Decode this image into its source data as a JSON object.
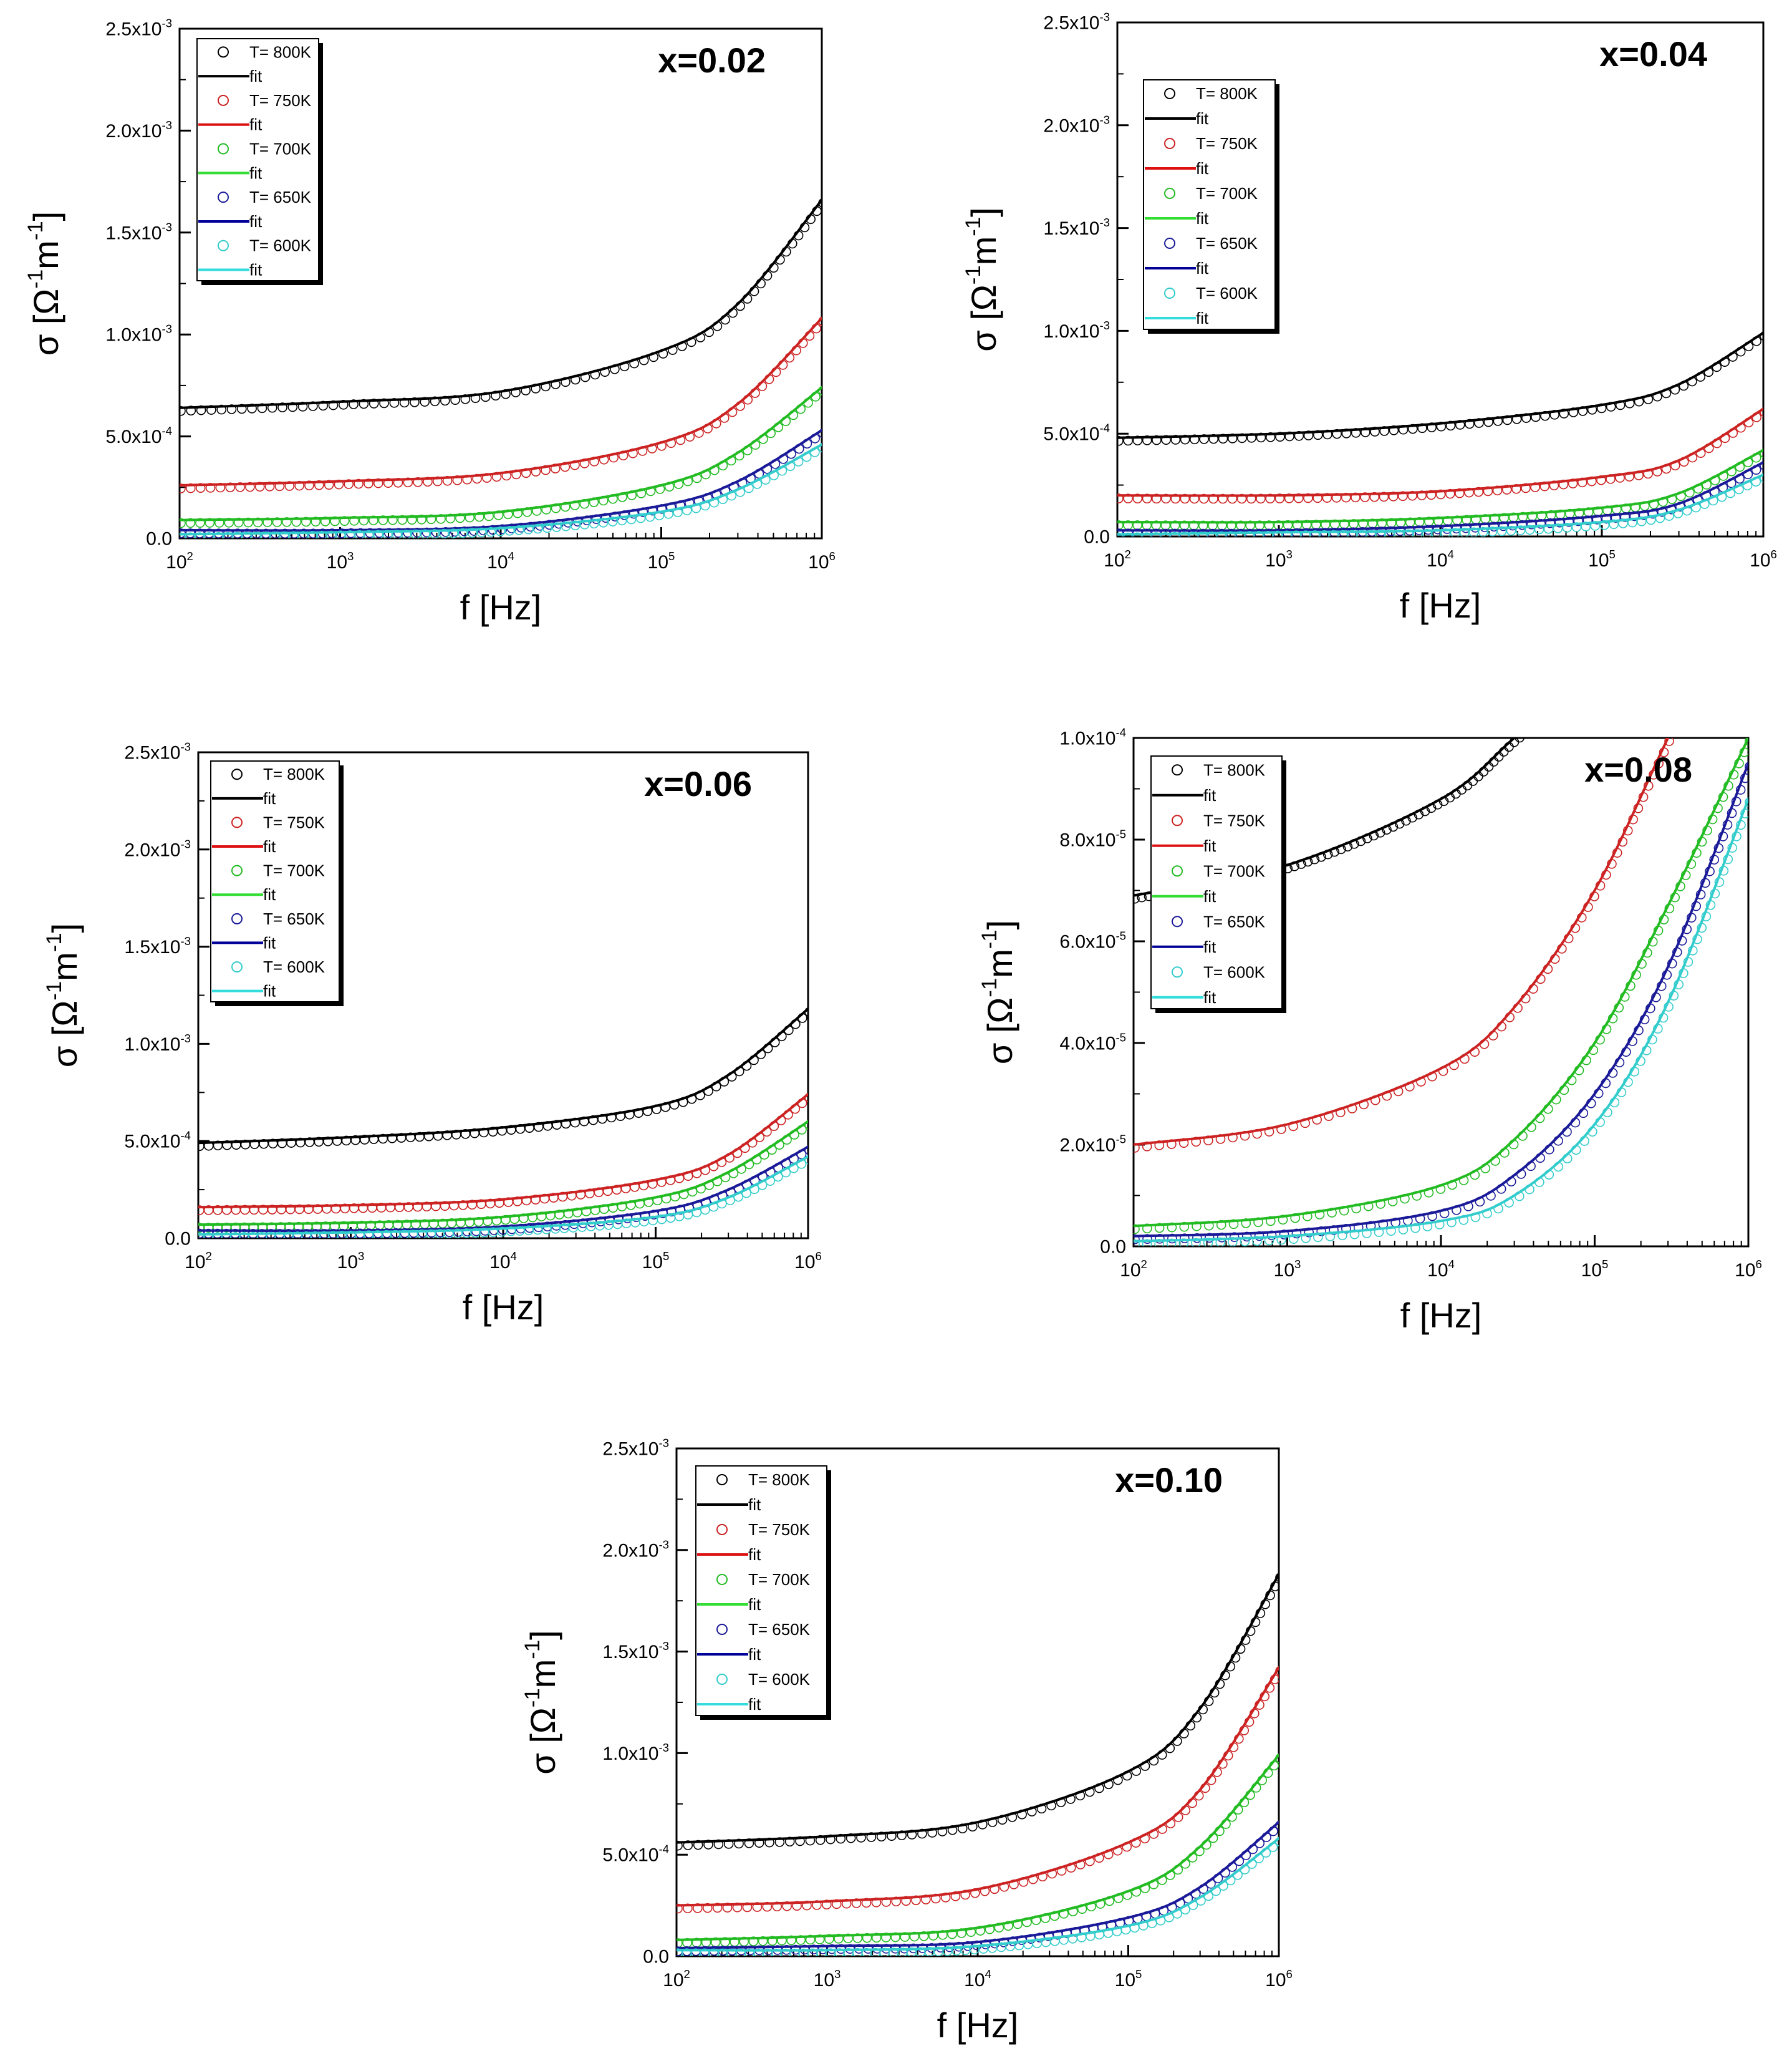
{
  "chart_data": [
    {
      "type": "scatter",
      "title": "x=0.02",
      "xlabel": "f  [Hz]",
      "ylabel": "σ [Ω-1m-1]",
      "xscale": "log",
      "xlim": [
        100,
        1000000
      ],
      "ylim": [
        0,
        0.0025
      ],
      "xticks": [
        "102",
        "103",
        "104",
        "105",
        "106"
      ],
      "yticks": [
        "0.0",
        "5.0x10-4",
        "1.0x10-3",
        "1.5x10-3",
        "2.0x10-3",
        "2.5x10-3"
      ],
      "legend_position": "top-left",
      "legend": [
        {
          "label": "T= 800K",
          "marker": "circle",
          "color": "#000000"
        },
        {
          "label": "fit",
          "marker": "line",
          "color": "#000000"
        },
        {
          "label": "T= 750K",
          "marker": "circle",
          "color": "#cc2222"
        },
        {
          "label": "fit",
          "marker": "line",
          "color": "#dd1111"
        },
        {
          "label": "T= 700K",
          "marker": "circle",
          "color": "#22bb22"
        },
        {
          "label": "fit",
          "marker": "line",
          "color": "#33dd33"
        },
        {
          "label": "T= 650K",
          "marker": "circle",
          "color": "#1a1a99"
        },
        {
          "label": "fit",
          "marker": "line",
          "color": "#000099"
        },
        {
          "label": "T= 600K",
          "marker": "circle",
          "color": "#33cccc"
        },
        {
          "label": "fit",
          "marker": "line",
          "color": "#33dddd"
        }
      ],
      "x": [
        100,
        1000,
        10000,
        100000,
        300000,
        1000000
      ],
      "series": [
        {
          "name": "T= 800K",
          "color": "#000000",
          "values": [
            0.00064,
            0.00067,
            0.00072,
            0.00092,
            0.00115,
            0.00166
          ]
        },
        {
          "name": "T= 750K",
          "color": "#cc2222",
          "values": [
            0.00026,
            0.00028,
            0.00032,
            0.00047,
            0.00066,
            0.00108
          ]
        },
        {
          "name": "T= 700K",
          "color": "#22bb22",
          "values": [
            9e-05,
            0.0001,
            0.00013,
            0.00026,
            0.00042,
            0.00074
          ]
        },
        {
          "name": "T= 650K",
          "color": "#1a1a99",
          "values": [
            4e-05,
            4e-05,
            6e-05,
            0.00016,
            0.00028,
            0.00053
          ]
        },
        {
          "name": "T= 600K",
          "color": "#33cccc",
          "values": [
            2e-05,
            3e-05,
            5e-05,
            0.00013,
            0.00024,
            0.00046
          ]
        }
      ]
    },
    {
      "type": "scatter",
      "title": "x=0.04",
      "xlabel": "f [Hz]",
      "ylabel": "σ [Ω-1m-1]",
      "xscale": "log",
      "xlim": [
        100,
        1000000
      ],
      "ylim": [
        0,
        0.0025
      ],
      "xticks": [
        "102",
        "103",
        "104",
        "105",
        "106"
      ],
      "yticks": [
        "0.0",
        "5.0x10-4",
        "1.0x10-3",
        "1.5x10-3",
        "2.0x10-3",
        "2.5x10-3"
      ],
      "legend_position": "top-left",
      "legend": [
        {
          "label": "T= 800K",
          "marker": "circle",
          "color": "#000000"
        },
        {
          "label": "fit",
          "marker": "line",
          "color": "#000000"
        },
        {
          "label": "T= 750K",
          "marker": "circle",
          "color": "#cc2222"
        },
        {
          "label": "fit",
          "marker": "line",
          "color": "#dd1111"
        },
        {
          "label": "T= 700K",
          "marker": "circle",
          "color": "#22bb22"
        },
        {
          "label": "fit",
          "marker": "line",
          "color": "#33dd33"
        },
        {
          "label": "T= 650K",
          "marker": "circle",
          "color": "#1a1a99"
        },
        {
          "label": "fit",
          "marker": "line",
          "color": "#000099"
        },
        {
          "label": "T= 600K",
          "marker": "circle",
          "color": "#33cccc"
        },
        {
          "label": "fit",
          "marker": "line",
          "color": "#33dddd"
        }
      ],
      "x": [
        100,
        1000,
        10000,
        100000,
        300000,
        1000000
      ],
      "series": [
        {
          "name": "T= 800K",
          "color": "#000000",
          "values": [
            0.00048,
            0.0005,
            0.00055,
            0.00064,
            0.00074,
            0.00099
          ]
        },
        {
          "name": "T= 750K",
          "color": "#cc2222",
          "values": [
            0.0002,
            0.0002,
            0.00022,
            0.00029,
            0.00037,
            0.00062
          ]
        },
        {
          "name": "T= 700K",
          "color": "#22bb22",
          "values": [
            7e-05,
            7e-05,
            9e-05,
            0.00014,
            0.00021,
            0.00042
          ]
        },
        {
          "name": "T= 650K",
          "color": "#1a1a99",
          "values": [
            3e-05,
            3e-05,
            5e-05,
            0.0001,
            0.00016,
            0.00036
          ]
        },
        {
          "name": "T= 600K",
          "color": "#33cccc",
          "values": [
            1e-05,
            2e-05,
            3e-05,
            7e-05,
            0.00013,
            0.0003
          ]
        }
      ]
    },
    {
      "type": "scatter",
      "title": "x=0.06",
      "xlabel": "f [Hz]",
      "ylabel": "σ [Ω-1m-1]",
      "xscale": "log",
      "xlim": [
        100,
        1000000
      ],
      "ylim": [
        0,
        0.0025
      ],
      "xticks": [
        "102",
        "103",
        "104",
        "105",
        "106"
      ],
      "yticks": [
        "0.0",
        "5.0x10-4",
        "1.0x10-3",
        "1.5x10-3",
        "2.0x10-3",
        "2.5x10-3"
      ],
      "legend_position": "top-left",
      "legend": [
        {
          "label": "T= 800K",
          "marker": "circle",
          "color": "#000000"
        },
        {
          "label": "fit",
          "marker": "line",
          "color": "#000000"
        },
        {
          "label": "T= 750K",
          "marker": "circle",
          "color": "#cc2222"
        },
        {
          "label": "fit",
          "marker": "line",
          "color": "#dd1111"
        },
        {
          "label": "T= 700K",
          "marker": "circle",
          "color": "#22bb22"
        },
        {
          "label": "fit",
          "marker": "line",
          "color": "#33dd33"
        },
        {
          "label": "T= 650K",
          "marker": "circle",
          "color": "#1a1a99"
        },
        {
          "label": "fit",
          "marker": "line",
          "color": "#000099"
        },
        {
          "label": "T= 600K",
          "marker": "circle",
          "color": "#33cccc"
        },
        {
          "label": "fit",
          "marker": "line",
          "color": "#33dddd"
        }
      ],
      "x": [
        100,
        1000,
        10000,
        100000,
        300000,
        1000000
      ],
      "series": [
        {
          "name": "T= 800K",
          "color": "#000000",
          "values": [
            0.00049,
            0.00052,
            0.00057,
            0.00068,
            0.00084,
            0.00118
          ]
        },
        {
          "name": "T= 750K",
          "color": "#cc2222",
          "values": [
            0.00016,
            0.00017,
            0.0002,
            0.0003,
            0.00043,
            0.00074
          ]
        },
        {
          "name": "T= 700K",
          "color": "#22bb22",
          "values": [
            7e-05,
            8e-05,
            0.00011,
            0.00021,
            0.00034,
            0.0006
          ]
        },
        {
          "name": "T= 650K",
          "color": "#1a1a99",
          "values": [
            4e-05,
            4e-05,
            6e-05,
            0.00014,
            0.00025,
            0.00047
          ]
        },
        {
          "name": "T= 600K",
          "color": "#33cccc",
          "values": [
            2e-05,
            3e-05,
            5e-05,
            0.00011,
            0.00021,
            0.00042
          ]
        }
      ]
    },
    {
      "type": "scatter",
      "title": "x=0.08",
      "xlabel": "f [Hz]",
      "ylabel": "σ [Ω-1m-1]",
      "xscale": "log",
      "xlim": [
        100,
        1000000
      ],
      "ylim": [
        0,
        0.0001
      ],
      "xticks": [
        "102",
        "103",
        "104",
        "105",
        "106"
      ],
      "yticks": [
        "0.0",
        "2.0x10-5",
        "4.0x10-5",
        "6.0x10-5",
        "8.0x10-5",
        "1.0x10-4"
      ],
      "legend_position": "top-left",
      "legend": [
        {
          "label": "T= 800K",
          "marker": "circle",
          "color": "#000000"
        },
        {
          "label": "fit",
          "marker": "line",
          "color": "#000000"
        },
        {
          "label": "T= 750K",
          "marker": "circle",
          "color": "#cc2222"
        },
        {
          "label": "fit",
          "marker": "line",
          "color": "#dd1111"
        },
        {
          "label": "T= 700K",
          "marker": "circle",
          "color": "#22bb22"
        },
        {
          "label": "fit",
          "marker": "line",
          "color": "#33dd33"
        },
        {
          "label": "T= 650K",
          "marker": "circle",
          "color": "#1a1a99"
        },
        {
          "label": "fit",
          "marker": "line",
          "color": "#000099"
        },
        {
          "label": "T= 600K",
          "marker": "circle",
          "color": "#33cccc"
        },
        {
          "label": "fit",
          "marker": "line",
          "color": "#33dddd"
        }
      ],
      "x": [
        100,
        1000,
        10000,
        30000,
        100000,
        300000,
        1000000
      ],
      "series": [
        {
          "name": "T= 800K",
          "color": "#000000",
          "values": [
            6.9e-05,
            7.5e-05,
            8.8e-05,
            0.0001,
            null,
            null,
            null
          ]
        },
        {
          "name": "T= 750K",
          "color": "#cc2222",
          "values": [
            2e-05,
            2.4e-05,
            3.5e-05,
            4.7e-05,
            7e-05,
            0.0001,
            null
          ]
        },
        {
          "name": "T= 700K",
          "color": "#22bb22",
          "values": [
            4e-06,
            6e-06,
            1.2e-05,
            2.1e-05,
            4e-05,
            6.7e-05,
            0.0001
          ]
        },
        {
          "name": "T= 650K",
          "color": "#1a1a99",
          "values": [
            2e-06,
            3e-06,
            7e-06,
            1.4e-05,
            3e-05,
            5.5e-05,
            9.5e-05
          ]
        },
        {
          "name": "T= 600K",
          "color": "#33cccc",
          "values": [
            1e-06,
            2e-06,
            5e-06,
            1e-05,
            2.4e-05,
            4.8e-05,
            8.8e-05
          ]
        }
      ]
    },
    {
      "type": "scatter",
      "title": "x=0.10",
      "xlabel": "f [Hz]",
      "ylabel": "σ [Ω-1m-1]",
      "xscale": "log",
      "xlim": [
        100,
        1000000
      ],
      "ylim": [
        0,
        0.0025
      ],
      "xticks": [
        "102",
        "103",
        "104",
        "105",
        "106"
      ],
      "yticks": [
        "0.0",
        "5.0x10-4",
        "1.0x10-3",
        "1.5x10-3",
        "2.0x10-3",
        "2.5x10-3"
      ],
      "legend_position": "top-left",
      "legend": [
        {
          "label": "T= 800K",
          "marker": "circle",
          "color": "#000000"
        },
        {
          "label": "fit",
          "marker": "line",
          "color": "#000000"
        },
        {
          "label": "T= 750K",
          "marker": "circle",
          "color": "#cc2222"
        },
        {
          "label": "fit",
          "marker": "line",
          "color": "#dd1111"
        },
        {
          "label": "T= 700K",
          "marker": "circle",
          "color": "#22bb22"
        },
        {
          "label": "fit",
          "marker": "line",
          "color": "#33dd33"
        },
        {
          "label": "T= 650K",
          "marker": "circle",
          "color": "#1a1a99"
        },
        {
          "label": "fit",
          "marker": "line",
          "color": "#000099"
        },
        {
          "label": "T= 600K",
          "marker": "circle",
          "color": "#33cccc"
        },
        {
          "label": "fit",
          "marker": "line",
          "color": "#33dddd"
        }
      ],
      "x": [
        100,
        1000,
        10000,
        100000,
        300000,
        1000000
      ],
      "series": [
        {
          "name": "T= 800K",
          "color": "#000000",
          "values": [
            0.00056,
            0.00059,
            0.00066,
            0.00091,
            0.00122,
            0.00188
          ]
        },
        {
          "name": "T= 750K",
          "color": "#cc2222",
          "values": [
            0.00025,
            0.00027,
            0.00033,
            0.00056,
            0.00082,
            0.00142
          ]
        },
        {
          "name": "T= 700K",
          "color": "#22bb22",
          "values": [
            8e-05,
            0.0001,
            0.00014,
            0.00032,
            0.00054,
            0.00099
          ]
        },
        {
          "name": "T= 650K",
          "color": "#1a1a99",
          "values": [
            4e-05,
            5e-05,
            7e-05,
            0.00019,
            0.00034,
            0.00066
          ]
        },
        {
          "name": "T= 600K",
          "color": "#33cccc",
          "values": [
            3e-05,
            3e-05,
            5e-05,
            0.00015,
            0.00029,
            0.00058
          ]
        }
      ]
    }
  ]
}
